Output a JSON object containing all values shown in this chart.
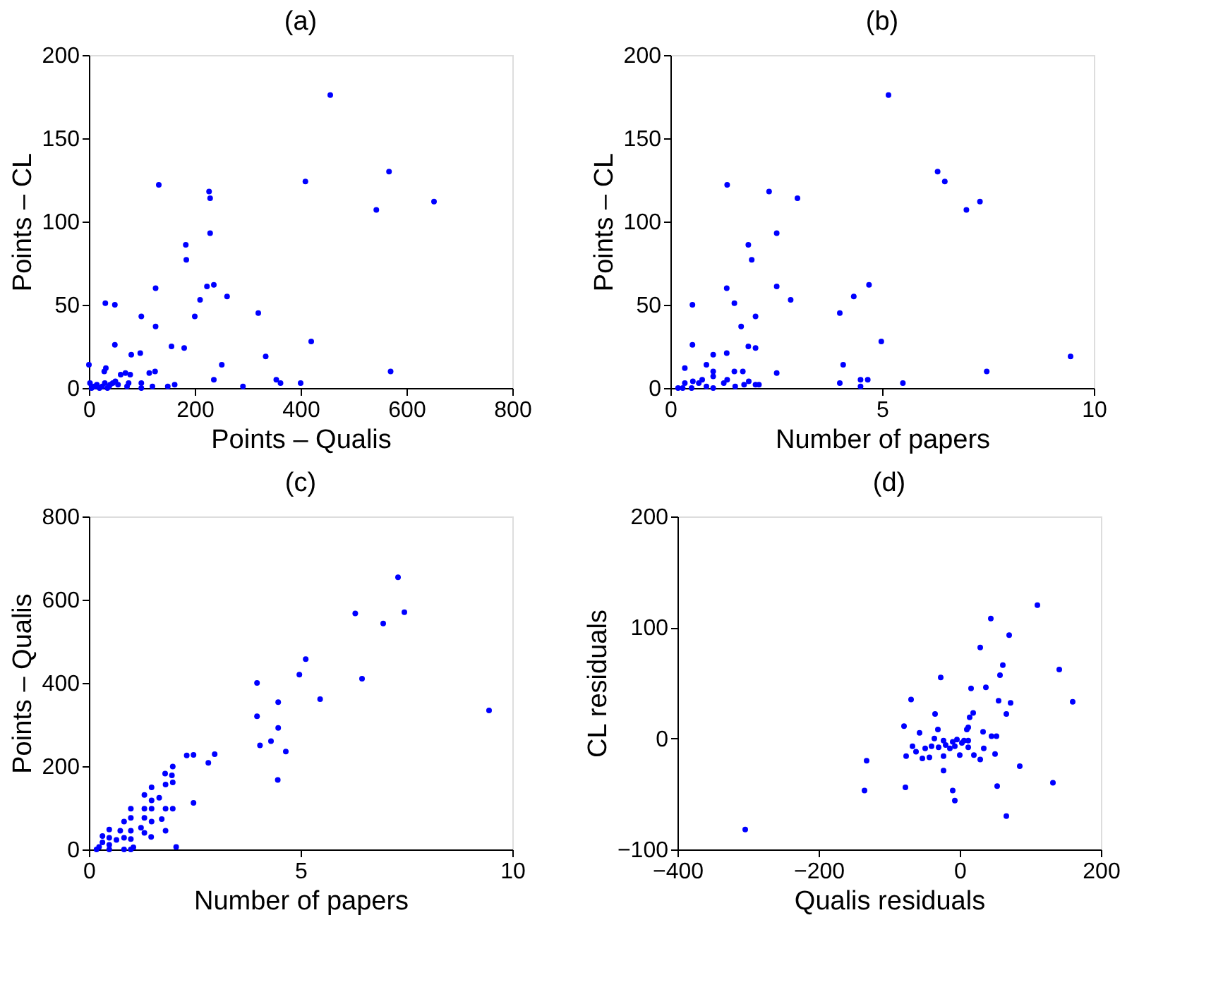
{
  "chart_data": [
    {
      "type": "scatter",
      "title": "(a)",
      "xlabel": "Points – Qualis",
      "ylabel": "Points – CL",
      "color": "#0000ff",
      "marker": "circle",
      "grid": false,
      "xlim": [
        0,
        800
      ],
      "ylim": [
        0,
        200
      ],
      "xticks": [
        0,
        200,
        400,
        600,
        800
      ],
      "yticks": [
        0,
        50,
        100,
        150,
        200
      ],
      "x": [
        456,
        567,
        409,
        652,
        543,
        132,
        227,
        229,
        229,
        183,
        184,
        126,
        223,
        236,
        210,
        261,
        31,
        49,
        99,
        126,
        200,
        320,
        49,
        80,
        97,
        156,
        180,
        420,
        334,
        251,
        0,
        570,
        236,
        354,
        362,
        400,
        291,
        114,
        125,
        32,
        29,
        60,
        69,
        78,
        149,
        162,
        120,
        99,
        99,
        72,
        75,
        2,
        5,
        10,
        15,
        20,
        25,
        30,
        35,
        40,
        45,
        50,
        55,
        12,
        38
      ],
      "values": [
        176,
        130,
        124,
        112,
        107,
        122,
        118,
        114,
        93,
        86,
        77,
        60,
        61,
        62,
        53,
        55,
        51,
        50,
        43,
        37,
        43,
        45,
        26,
        20,
        21,
        25,
        24,
        28,
        19,
        14,
        14,
        10,
        5,
        5,
        3,
        3,
        1,
        9,
        10,
        12,
        10,
        8,
        9,
        8,
        1,
        2,
        1,
        0,
        3,
        1,
        3,
        3,
        0,
        1,
        2,
        0,
        1,
        3,
        0,
        2,
        3,
        4,
        2,
        1,
        1
      ]
    },
    {
      "type": "scatter",
      "title": "(b)",
      "xlabel": "Number of papers",
      "ylabel": "Points – CL",
      "color": "#0000ff",
      "marker": "circle",
      "grid": false,
      "xlim": [
        0,
        10
      ],
      "ylim": [
        0,
        200
      ],
      "xticks": [
        0,
        5,
        10
      ],
      "yticks": [
        0,
        50,
        100,
        150,
        200
      ],
      "x": [
        5.15,
        6.31,
        6.48,
        7.31,
        6.99,
        1.34,
        2.33,
        3.0,
        2.51,
        1.84,
        1.92,
        1.33,
        2.51,
        4.69,
        1.51,
        2.84,
        4.33,
        0.52,
        2.01,
        4.0,
        1.67,
        0.52,
        1.84,
        2.01,
        4.98,
        1.33,
        1.01,
        9.45,
        4.08,
        0.85,
        0.34,
        7.47,
        1.51,
        1.71,
        1.01,
        2.51,
        1.01,
        0.75,
        4.66,
        4.49,
        4.0,
        5.49,
        4.49,
        1.34,
        1.85,
        1.74,
        2.01,
        2.09,
        1.53,
        1.26,
        0.53,
        0.34,
        0.18,
        0.29,
        0.5,
        0.85,
        1.01,
        0.67
      ],
      "values": [
        176,
        130,
        124,
        112,
        107,
        122,
        118,
        114,
        93,
        86,
        77,
        60,
        61,
        62,
        51,
        53,
        55,
        50,
        43,
        45,
        37,
        26,
        25,
        24,
        28,
        21,
        20,
        19,
        14,
        14,
        12,
        10,
        10,
        10,
        10,
        9,
        7,
        5,
        5,
        5,
        3,
        3,
        1,
        5,
        4,
        2,
        2,
        2,
        1,
        3,
        4,
        3,
        0,
        0,
        0,
        1,
        0,
        3
      ]
    },
    {
      "type": "scatter",
      "title": "(c)",
      "xlabel": "Number of papers",
      "ylabel": "Points – Qualis",
      "color": "#0000ff",
      "marker": "circle",
      "grid": false,
      "xlim": [
        0,
        10
      ],
      "ylim": [
        0,
        800
      ],
      "xticks": [
        0,
        5,
        10
      ],
      "yticks": [
        0,
        200,
        400,
        600,
        800
      ],
      "x": [
        7.3,
        6.29,
        7.45,
        6.95,
        5.12,
        4.97,
        6.45,
        3.97,
        4.47,
        5.46,
        9.45,
        3.97,
        4.47,
        4.3,
        4.04,
        4.65,
        4.46,
        2.31,
        2.47,
        2.97,
        2.82,
        1.98,
        1.8,
        1.96,
        1.98,
        1.81,
        1.48,
        1.31,
        1.66,
        1.48,
        2.47,
        1.31,
        1.48,
        1.81,
        1.98,
        0.99,
        0.99,
        1.31,
        1.72,
        1.48,
        0.83,
        1.23,
        1.81,
        1.31,
        1.47,
        0.99,
        0.74,
        0.48,
        0.65,
        0.83,
        0.99,
        2.06,
        0.83,
        0.99,
        1.05,
        0.48,
        0.32,
        0.32,
        0.24,
        0.18,
        0.48,
        0.48
      ],
      "values": [
        654,
        567,
        570,
        543,
        457,
        420,
        410,
        400,
        354,
        361,
        334,
        320,
        292,
        260,
        250,
        235,
        167,
        226,
        227,
        229,
        208,
        199,
        182,
        178,
        161,
        156,
        149,
        131,
        124,
        118,
        112,
        98,
        98,
        98,
        98,
        98,
        76,
        76,
        73,
        67,
        67,
        52,
        45,
        40,
        30,
        45,
        45,
        48,
        23,
        28,
        25,
        6,
        0,
        0,
        5,
        28,
        32,
        17,
        6,
        0,
        11,
        0
      ]
    },
    {
      "type": "scatter",
      "title": "(d)",
      "xlabel": "Qualis residuals",
      "ylabel": "CL residuals",
      "color": "#0000ff",
      "marker": "circle",
      "grid": false,
      "xlim": [
        -400,
        200
      ],
      "ylim": [
        -100,
        200
      ],
      "xticks": [
        -400,
        -200,
        0,
        200
      ],
      "yticks": [
        -100,
        0,
        100,
        200
      ],
      "x": [
        -304,
        110,
        44,
        70,
        29,
        61,
        57,
        141,
        -27,
        16,
        37,
        55,
        72,
        160,
        66,
        -69,
        -35,
        19,
        14,
        -79,
        -57,
        -31,
        10,
        12,
        33,
        45,
        52,
        -36,
        -23,
        -10,
        -4,
        6,
        12,
        -67,
        -49,
        -40,
        -30,
        -20,
        -14,
        -7,
        3,
        12,
        34,
        -62,
        -53,
        -43,
        -23,
        -76,
        0,
        20,
        50,
        29,
        -132,
        85,
        -23,
        132,
        -135,
        -77,
        53,
        -10,
        -7,
        66
      ],
      "values": [
        -82,
        120,
        108,
        93,
        82,
        66,
        57,
        62,
        55,
        45,
        46,
        34,
        32,
        33,
        22,
        35,
        22,
        23,
        19,
        11,
        5,
        8,
        8,
        10,
        6,
        2,
        2,
        0,
        -2,
        -3,
        -1,
        -2,
        -2,
        -7,
        -9,
        -7,
        -8,
        -6,
        -9,
        -7,
        -4,
        -8,
        -9,
        -12,
        -18,
        -17,
        -16,
        -16,
        -15,
        -15,
        -14,
        -19,
        -20,
        -25,
        -29,
        -40,
        -47,
        -44,
        -43,
        -47,
        -56,
        -70
      ]
    }
  ]
}
